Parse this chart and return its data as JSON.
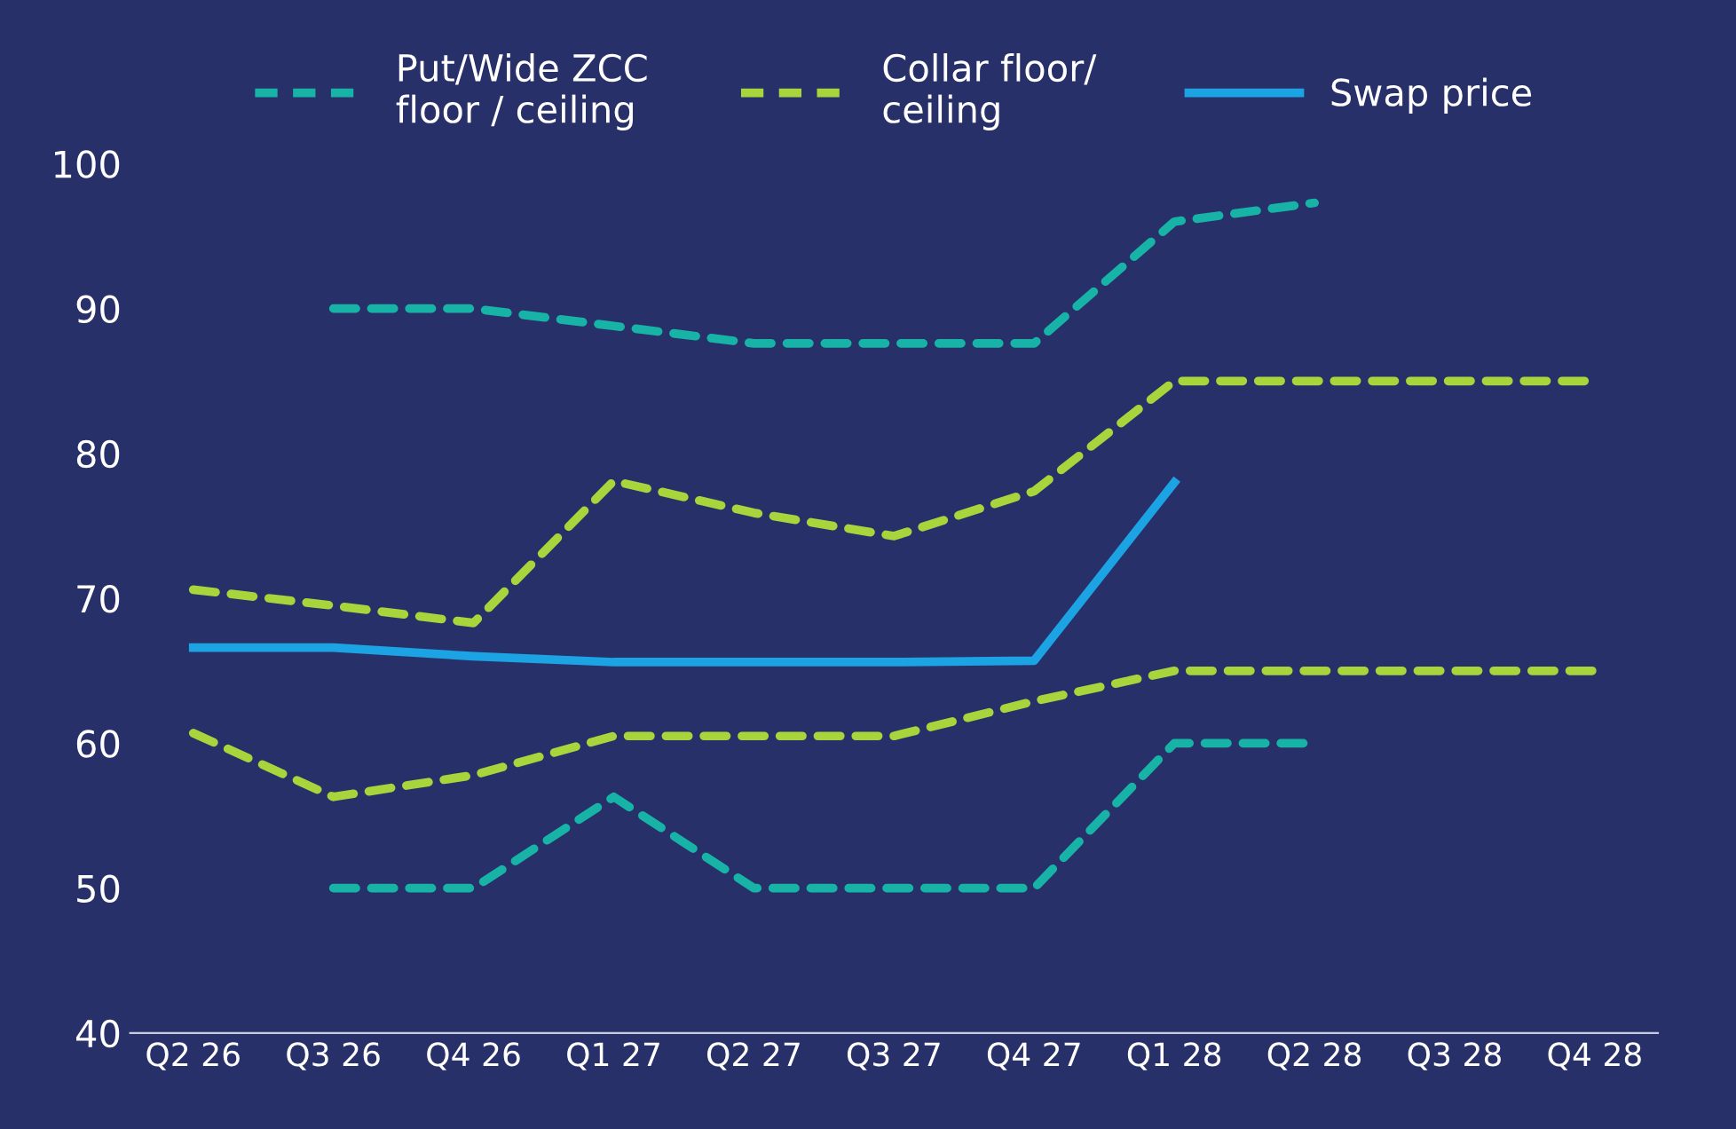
{
  "chart_data": {
    "type": "line",
    "categories": [
      "Q2 26",
      "Q3 26",
      "Q4 26",
      "Q1 27",
      "Q2 27",
      "Q3 27",
      "Q4 27",
      "Q1 28",
      "Q2 28",
      "Q3 28",
      "Q4 28"
    ],
    "series": [
      {
        "name": "Put/Wide ZCC\nfloor / ceiling",
        "color": "#17b3a6",
        "line_style": "dashed",
        "values": [
          null,
          90,
          90,
          88.8,
          87.6,
          87.6,
          87.6,
          96,
          97.3,
          null,
          null
        ]
      },
      {
        "color": "#17b3a6",
        "line_style": "dashed",
        "values": [
          null,
          50,
          50,
          56.3,
          50,
          50,
          50,
          60,
          60,
          null,
          null
        ]
      },
      {
        "name": "Collar floor/\nceiling",
        "color": "#a8d43c",
        "line_style": "dashed",
        "values": [
          70.6,
          69.5,
          68.3,
          78.1,
          75.9,
          74.3,
          77.4,
          85,
          85,
          85,
          85
        ]
      },
      {
        "color": "#a8d43c",
        "line_style": "dashed",
        "values": [
          60.7,
          56.3,
          57.8,
          60.5,
          60.5,
          60.5,
          62.9,
          65,
          65,
          65,
          65
        ]
      },
      {
        "name": "Swap price",
        "color": "#1ba3e3",
        "line_style": "solid",
        "values": [
          66.6,
          66.6,
          66,
          65.6,
          65.6,
          65.6,
          65.7,
          78,
          null,
          null,
          null
        ]
      }
    ],
    "ylim": [
      40,
      100
    ],
    "yticks": [
      40,
      50,
      60,
      70,
      80,
      90,
      100
    ],
    "grid": false,
    "legend": "top",
    "marker": "none"
  }
}
